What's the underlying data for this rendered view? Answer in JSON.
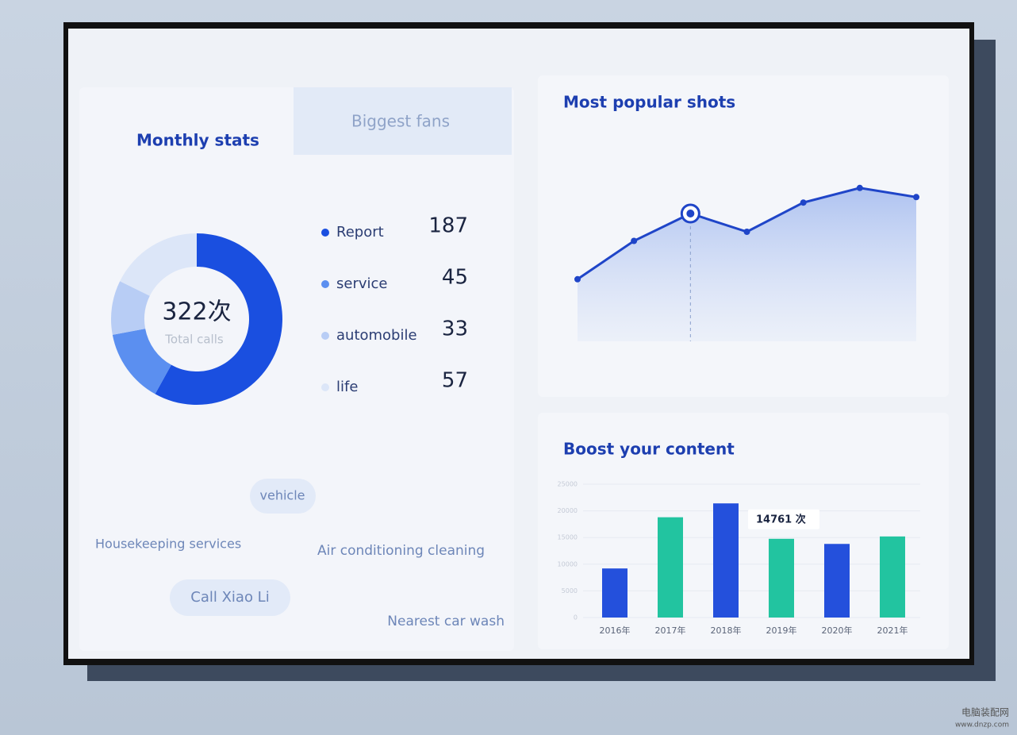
{
  "tab": "Biggest fans",
  "chart_data": [
    {
      "type": "donut",
      "title": "Monthly stats",
      "center_label": "322次",
      "center_sublabel": "Total calls",
      "categories": [
        "Report",
        "service",
        "automobile",
        "life"
      ],
      "values": [
        187,
        45,
        33,
        57
      ],
      "colors": [
        "#1a4fe0",
        "#5b8ff0",
        "#b8cdf5",
        "#dce6f8"
      ]
    },
    {
      "type": "line",
      "title": "Most popular shots",
      "values": [
        34,
        55,
        70,
        60,
        76,
        84,
        79
      ],
      "ylim": [
        0,
        100
      ],
      "color": "#1f45c8"
    },
    {
      "type": "bar",
      "title": "Boost your content",
      "categories": [
        "2016年",
        "2017年",
        "2018年",
        "2019年",
        "2020年",
        "2021年"
      ],
      "values": [
        9200,
        18800,
        21400,
        14761,
        13800,
        15200
      ],
      "value_labels": [
        null,
        null,
        null,
        "14761 次",
        null,
        null
      ],
      "colors": [
        "#2450dc",
        "#22c4a0",
        "#2450dc",
        "#22c4a0",
        "#2450dc",
        "#22c4a0"
      ],
      "ylim": [
        0,
        25000
      ],
      "yticks": [
        0,
        5000,
        10000,
        15000,
        20000,
        25000
      ],
      "grid": true
    }
  ],
  "tags": [
    "vehicle",
    "Housekeeping services",
    "Air conditioning cleaning",
    "Call Xiao Li",
    "Nearest car wash"
  ],
  "watermark": [
    "电脑装配网",
    "www.dnzp.com"
  ]
}
